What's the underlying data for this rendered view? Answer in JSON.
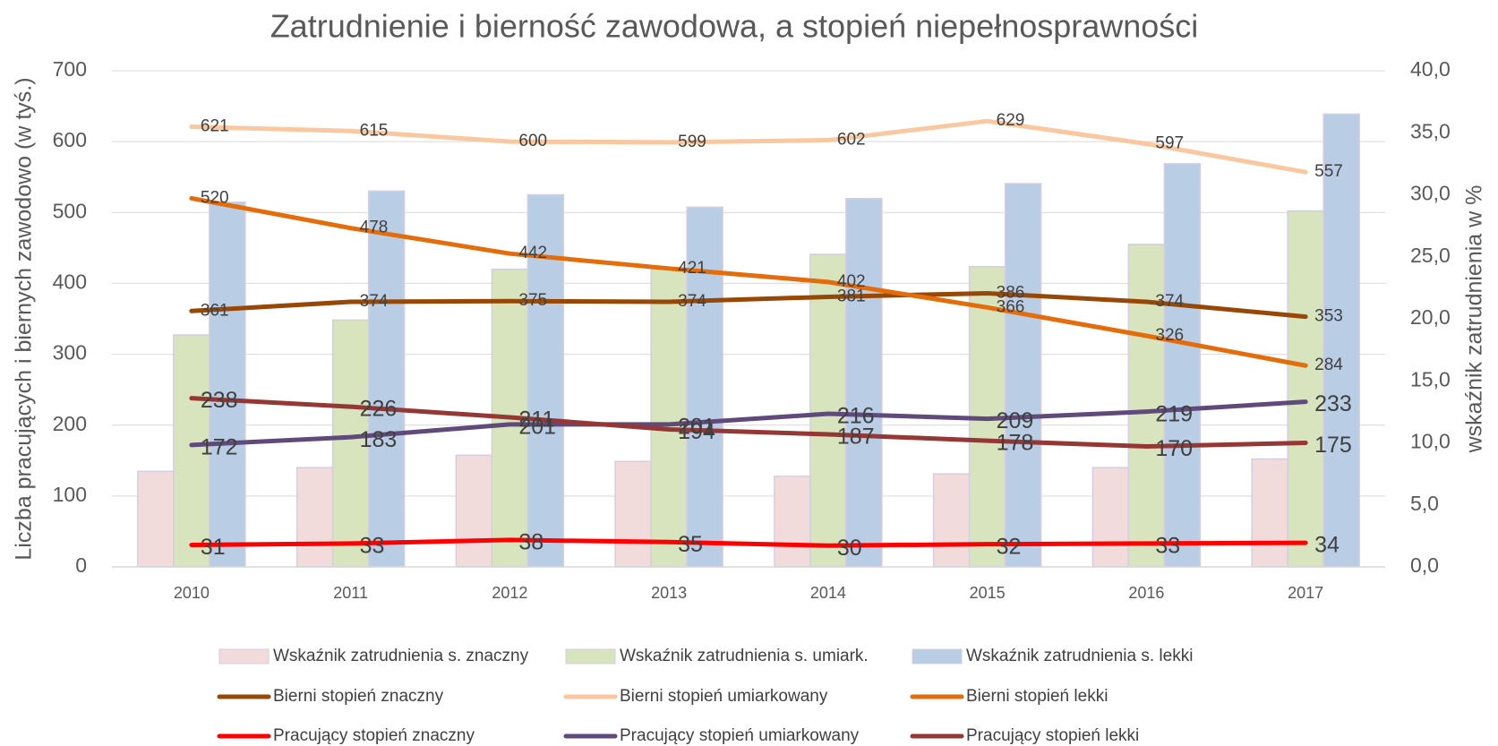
{
  "chart_data": {
    "type": "combo",
    "title": "Zatrudnienie i bierność zawodowa, a stopień niepełnosprawności",
    "y_label": "Liczba pracujących i biernych zawodowo (w tyś.)",
    "y2_label": "wskaźnik zatrudnienia w %",
    "categories": [
      "2010",
      "2011",
      "2012",
      "2013",
      "2014",
      "2015",
      "2016",
      "2017"
    ],
    "ylim": [
      0,
      700
    ],
    "yticks": [
      0,
      100,
      200,
      300,
      400,
      500,
      600,
      700
    ],
    "y2lim": [
      0,
      40
    ],
    "y2ticks": [
      {
        "value": 0,
        "label": "0,0"
      },
      {
        "value": 5,
        "label": "5,0"
      },
      {
        "value": 10,
        "label": "10,0"
      },
      {
        "value": 15,
        "label": "15,0"
      },
      {
        "value": 20,
        "label": "20,0"
      },
      {
        "value": 25,
        "label": "25,0"
      },
      {
        "value": 30,
        "label": "30,0"
      },
      {
        "value": 35,
        "label": "35,0"
      },
      {
        "value": 40,
        "label": "40,0"
      }
    ],
    "grid": true,
    "legend": "bottom",
    "series": [
      {
        "name": "Wskaźnik zatrudnienia s. znaczny",
        "type": "bar",
        "axis": "y2",
        "color": "#f2dcdb",
        "values": [
          7.7,
          8.0,
          9.0,
          8.5,
          7.3,
          7.5,
          8.0,
          8.7
        ]
      },
      {
        "name": "Wskaźnik zatrudnienia s. umiark.",
        "type": "bar",
        "axis": "y2",
        "color": "#d7e4bd",
        "values": [
          18.7,
          19.9,
          24.0,
          24.0,
          25.2,
          24.2,
          26.0,
          28.7
        ]
      },
      {
        "name": "Wskaźnik zatrudnienia s. lekki",
        "type": "bar",
        "axis": "y2",
        "color": "#b9cde5",
        "values": [
          29.4,
          30.3,
          30.0,
          29.0,
          29.7,
          30.9,
          32.5,
          36.5
        ]
      },
      {
        "name": "Bierni stopień znaczny",
        "type": "line",
        "axis": "y",
        "color": "#974806",
        "values": [
          361,
          374,
          375,
          374,
          381,
          386,
          374,
          353
        ]
      },
      {
        "name": "Bierni stopień umiarkowany",
        "type": "line",
        "axis": "y",
        "color": "#fac8a0",
        "values": [
          621,
          615,
          600,
          599,
          602,
          629,
          597,
          557
        ]
      },
      {
        "name": "Bierni stopień lekki",
        "type": "line",
        "axis": "y",
        "color": "#e46c0a",
        "values": [
          520,
          478,
          442,
          421,
          402,
          366,
          326,
          284
        ]
      },
      {
        "name": "Pracujący stopień znaczny",
        "type": "line",
        "axis": "y",
        "color": "#ff0000",
        "values": [
          31,
          33,
          38,
          35,
          30,
          32,
          33,
          34
        ]
      },
      {
        "name": "Pracujący stopień umiarkowany",
        "type": "line",
        "axis": "y",
        "color": "#604a7b",
        "values": [
          172,
          183,
          201,
          201,
          216,
          209,
          219,
          233
        ]
      },
      {
        "name": "Pracujący stopień lekki",
        "type": "line",
        "axis": "y",
        "color": "#953735",
        "values": [
          238,
          226,
          211,
          194,
          187,
          178,
          170,
          175
        ]
      }
    ]
  }
}
